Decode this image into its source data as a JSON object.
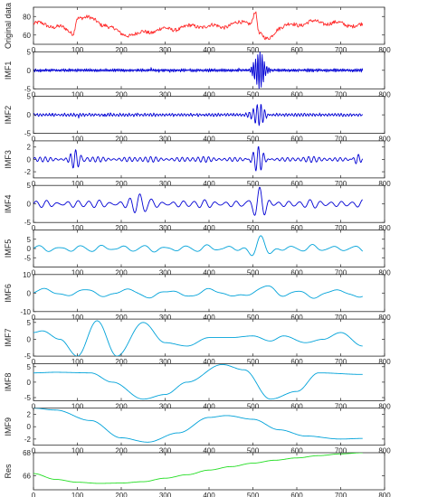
{
  "chart_data": [
    {
      "type": "line",
      "name": "original",
      "ylabel": "Original data",
      "xlim": [
        0,
        800
      ],
      "ylim": [
        50,
        90
      ],
      "yticks": [
        60,
        80
      ],
      "xticks": [
        0,
        100,
        200,
        300,
        400,
        500,
        600,
        700,
        800
      ],
      "color": "#ff2b2b",
      "kind": "noisy-trend",
      "x": [
        0,
        50,
        90,
        100,
        120,
        140,
        160,
        180,
        200,
        230,
        260,
        300,
        340,
        380,
        420,
        460,
        495,
        505,
        515,
        530,
        560,
        600,
        650,
        700,
        750
      ],
      "y": [
        72,
        70,
        62,
        80,
        78,
        76,
        72,
        66,
        62,
        60,
        64,
        66,
        68,
        70,
        69,
        72,
        74,
        86,
        60,
        55,
        68,
        72,
        74,
        72,
        70
      ]
    },
    {
      "type": "line",
      "name": "imf1",
      "ylabel": "IMF1",
      "xlim": [
        0,
        800
      ],
      "ylim": [
        -5,
        5
      ],
      "yticks": [
        -5,
        0,
        5
      ],
      "xticks": [
        0,
        100,
        200,
        300,
        400,
        500,
        600,
        700,
        800
      ],
      "color": "#0000d4",
      "kind": "noise",
      "period": 4,
      "amp": 0.35,
      "burst": {
        "center": 515,
        "width": 14,
        "amp": 5
      }
    },
    {
      "type": "line",
      "name": "imf2",
      "ylabel": "IMF2",
      "xlim": [
        0,
        800
      ],
      "ylim": [
        -5,
        5
      ],
      "yticks": [
        -5,
        0,
        5
      ],
      "xticks": [
        0,
        100,
        200,
        300,
        400,
        500,
        600,
        700,
        800
      ],
      "color": "#0000d4",
      "kind": "noise",
      "period": 7,
      "amp": 0.35,
      "burst": {
        "center": 512,
        "width": 16,
        "amp": 3
      }
    },
    {
      "type": "line",
      "name": "imf3",
      "ylabel": "IMF3",
      "xlim": [
        0,
        800
      ],
      "ylim": [
        -3,
        3
      ],
      "yticks": [
        -2,
        0,
        2
      ],
      "xticks": [
        0,
        100,
        200,
        300,
        400,
        500,
        600,
        700,
        800
      ],
      "color": "#0000d4",
      "kind": "wave",
      "period": 12,
      "amp": 0.5,
      "bursts": [
        {
          "center": 95,
          "width": 14,
          "amp": 1.6
        },
        {
          "center": 512,
          "width": 16,
          "amp": 2.6
        },
        {
          "center": 740,
          "width": 12,
          "amp": 1.2
        }
      ]
    },
    {
      "type": "line",
      "name": "imf4",
      "ylabel": "IMF4",
      "xlim": [
        0,
        800
      ],
      "ylim": [
        -5,
        5
      ],
      "yticks": [
        -5,
        0,
        5
      ],
      "xticks": [
        0,
        100,
        200,
        300,
        400,
        500,
        600,
        700,
        800
      ],
      "color": "#0000d4",
      "kind": "wave",
      "period": 24,
      "amp": 1.2,
      "bursts": [
        {
          "center": 240,
          "width": 22,
          "amp": 2.4
        },
        {
          "center": 515,
          "width": 18,
          "amp": 4.5
        }
      ]
    },
    {
      "type": "line",
      "name": "imf5",
      "ylabel": "IMF5",
      "xlim": [
        0,
        800
      ],
      "ylim": [
        -10,
        10
      ],
      "yticks": [
        -5,
        0,
        5
      ],
      "xticks": [
        0,
        100,
        200,
        300,
        400,
        500,
        600,
        700,
        800
      ],
      "color": "#00a2d9",
      "kind": "wave",
      "period": 48,
      "amp": 2.2,
      "bursts": [
        {
          "center": 515,
          "width": 26,
          "amp": 9
        }
      ]
    },
    {
      "type": "line",
      "name": "imf6",
      "ylabel": "IMF6",
      "xlim": [
        0,
        800
      ],
      "ylim": [
        -10,
        10
      ],
      "yticks": [
        -10,
        0,
        10
      ],
      "xticks": [
        0,
        100,
        200,
        300,
        400,
        500,
        600,
        700,
        800
      ],
      "color": "#00a2d9",
      "kind": "wave",
      "period": 95,
      "amp": 3,
      "bursts": [
        {
          "center": 530,
          "width": 50,
          "amp": 5
        }
      ]
    },
    {
      "type": "line",
      "name": "imf7",
      "ylabel": "IMF7",
      "xlim": [
        0,
        800
      ],
      "ylim": [
        -5,
        6
      ],
      "yticks": [
        -5,
        0,
        5
      ],
      "xticks": [
        0,
        100,
        200,
        300,
        400,
        500,
        600,
        700,
        800
      ],
      "color": "#00a2d9",
      "kind": "points",
      "x": [
        0,
        20,
        60,
        100,
        145,
        190,
        250,
        300,
        350,
        400,
        450,
        500,
        540,
        570,
        620,
        660,
        700,
        750
      ],
      "y": [
        2,
        2.5,
        0,
        -5,
        5.5,
        -5,
        5,
        -1,
        -2,
        0.5,
        0.5,
        1,
        -0.5,
        1,
        -1,
        0,
        2,
        -2
      ]
    },
    {
      "type": "line",
      "name": "imf8",
      "ylabel": "IMF8",
      "xlim": [
        0,
        800
      ],
      "ylim": [
        -6,
        6
      ],
      "yticks": [
        -5,
        0,
        5
      ],
      "xticks": [
        0,
        100,
        200,
        300,
        400,
        500,
        600,
        700,
        800
      ],
      "color": "#00a2d9",
      "kind": "points",
      "x": [
        0,
        50,
        130,
        180,
        250,
        300,
        350,
        430,
        480,
        540,
        600,
        650,
        750
      ],
      "y": [
        3,
        3.2,
        3,
        0,
        -5.5,
        -4,
        0,
        5.7,
        4,
        -5.5,
        -3,
        3,
        2.5
      ]
    },
    {
      "type": "line",
      "name": "imf9",
      "ylabel": "IMF9",
      "xlim": [
        0,
        800
      ],
      "ylim": [
        -3,
        3
      ],
      "yticks": [
        -2,
        0,
        2
      ],
      "xticks": [
        0,
        100,
        200,
        300,
        400,
        500,
        600,
        700,
        800
      ],
      "color": "#00a2d9",
      "kind": "points",
      "x": [
        0,
        50,
        130,
        200,
        260,
        330,
        400,
        440,
        500,
        560,
        620,
        700,
        750
      ],
      "y": [
        3,
        2.7,
        1,
        -1.8,
        -2.5,
        -1,
        1.5,
        1.8,
        1.2,
        -0.5,
        -1.5,
        -2,
        -1.9
      ]
    },
    {
      "type": "line",
      "name": "res",
      "ylabel": "Res",
      "xlim": [
        0,
        800
      ],
      "ylim": [
        64.8,
        68
      ],
      "yticks": [
        66,
        68
      ],
      "xticks": [
        0,
        100,
        200,
        300,
        400,
        500,
        600,
        700,
        800
      ],
      "color": "#22dd22",
      "kind": "points",
      "x": [
        0,
        50,
        100,
        150,
        200,
        250,
        300,
        350,
        400,
        450,
        500,
        550,
        600,
        650,
        700,
        750
      ],
      "y": [
        66.2,
        65.7,
        65.45,
        65.35,
        65.38,
        65.5,
        65.8,
        66.1,
        66.5,
        66.8,
        67.1,
        67.35,
        67.55,
        67.75,
        67.9,
        68
      ]
    }
  ]
}
